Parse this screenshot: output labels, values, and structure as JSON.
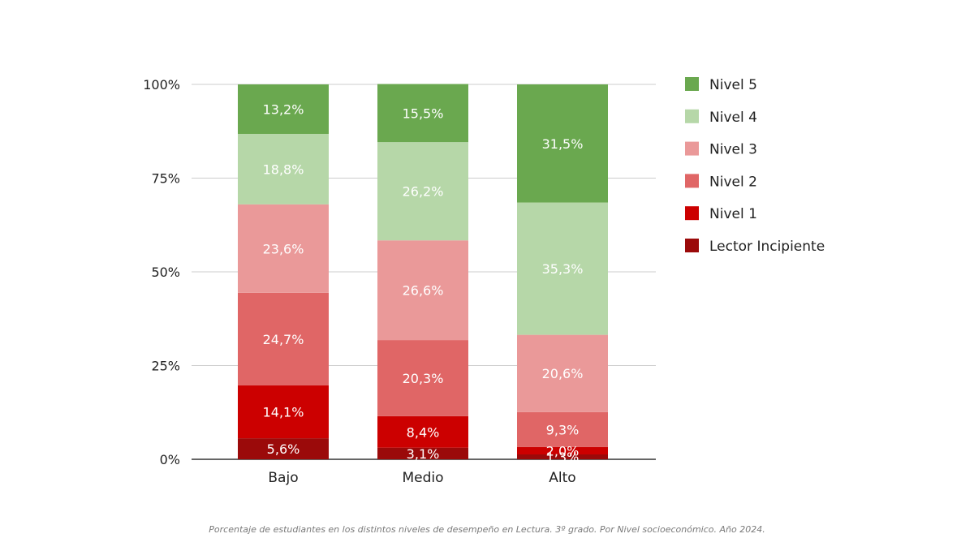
{
  "chart_data": {
    "type": "bar",
    "stacked": true,
    "categories": [
      "Bajo",
      "Medio",
      "Alto"
    ],
    "ylim": [
      0,
      100
    ],
    "y_ticks": [
      {
        "value": 0,
        "label": "0%"
      },
      {
        "value": 25,
        "label": "25%"
      },
      {
        "value": 50,
        "label": "50%"
      },
      {
        "value": 75,
        "label": "75%"
      },
      {
        "value": 100,
        "label": "100%"
      }
    ],
    "grid": true,
    "legend_position": "right",
    "series": [
      {
        "name": "Lector Incipiente",
        "color": "#9b0a0a",
        "values": [
          5.6,
          3.1,
          1.3
        ],
        "labels": [
          "5,6%",
          "3,1%",
          "1,3%"
        ]
      },
      {
        "name": "Nivel 1",
        "color": "#cc0000",
        "values": [
          14.1,
          8.4,
          2.0
        ],
        "labels": [
          "14,1%",
          "8,4%",
          "2,0%"
        ]
      },
      {
        "name": "Nivel 2",
        "color": "#e06666",
        "values": [
          24.7,
          20.3,
          9.3
        ],
        "labels": [
          "24,7%",
          "20,3%",
          "9,3%"
        ]
      },
      {
        "name": "Nivel 3",
        "color": "#ea9999",
        "values": [
          23.6,
          26.6,
          20.6
        ],
        "labels": [
          "23,6%",
          "26,6%",
          "20,6%"
        ]
      },
      {
        "name": "Nivel 4",
        "color": "#b6d7a8",
        "values": [
          18.8,
          26.2,
          35.3
        ],
        "labels": [
          "18,8%",
          "26,2%",
          "35,3%"
        ]
      },
      {
        "name": "Nivel 5",
        "color": "#6aa84f",
        "values": [
          13.2,
          15.5,
          31.5
        ],
        "labels": [
          "13,2%",
          "15,5%",
          "31,5%"
        ]
      }
    ],
    "legend_order": [
      "Nivel 5",
      "Nivel 4",
      "Nivel 3",
      "Nivel 2",
      "Nivel 1",
      "Lector Incipiente"
    ]
  },
  "caption": "Porcentaje de estudiantes en los distintos niveles de desempeño en Lectura. 3º grado. Por Nivel socioeconómico. Año 2024."
}
